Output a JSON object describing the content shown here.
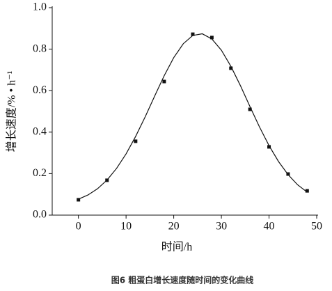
{
  "chart_data": {
    "type": "scatter",
    "caption": "图6 粗蛋白增长速度随时间的变化曲线",
    "xlabel": "时间/h",
    "ylabel": "增长速度/% • h⁻¹",
    "x": [
      0,
      6,
      12,
      18,
      24,
      28,
      32,
      36,
      40,
      44,
      48
    ],
    "values": [
      0.074,
      0.168,
      0.356,
      0.644,
      0.872,
      0.856,
      0.708,
      0.51,
      0.329,
      0.198,
      0.117
    ],
    "color": "#111111",
    "curve": {
      "x": [
        0,
        2,
        4,
        6,
        8,
        10,
        12,
        14,
        16,
        18,
        20,
        22,
        24,
        26,
        28,
        30,
        32,
        34,
        36,
        38,
        40,
        42,
        44,
        46,
        48
      ],
      "values": [
        0.077,
        0.097,
        0.127,
        0.169,
        0.225,
        0.295,
        0.379,
        0.473,
        0.574,
        0.672,
        0.759,
        0.826,
        0.866,
        0.874,
        0.849,
        0.795,
        0.717,
        0.624,
        0.523,
        0.425,
        0.335,
        0.258,
        0.195,
        0.146,
        0.111
      ]
    },
    "xlim": [
      -5.5,
      50
    ],
    "ylim": [
      0,
      1
    ],
    "xticks": [
      0,
      10,
      20,
      30,
      40,
      50
    ],
    "yticks": [
      {
        "value": 0,
        "label": "0.0"
      },
      0.2,
      0.4,
      0.6,
      0.8,
      {
        "value": 1,
        "label": "1.0"
      }
    ]
  }
}
